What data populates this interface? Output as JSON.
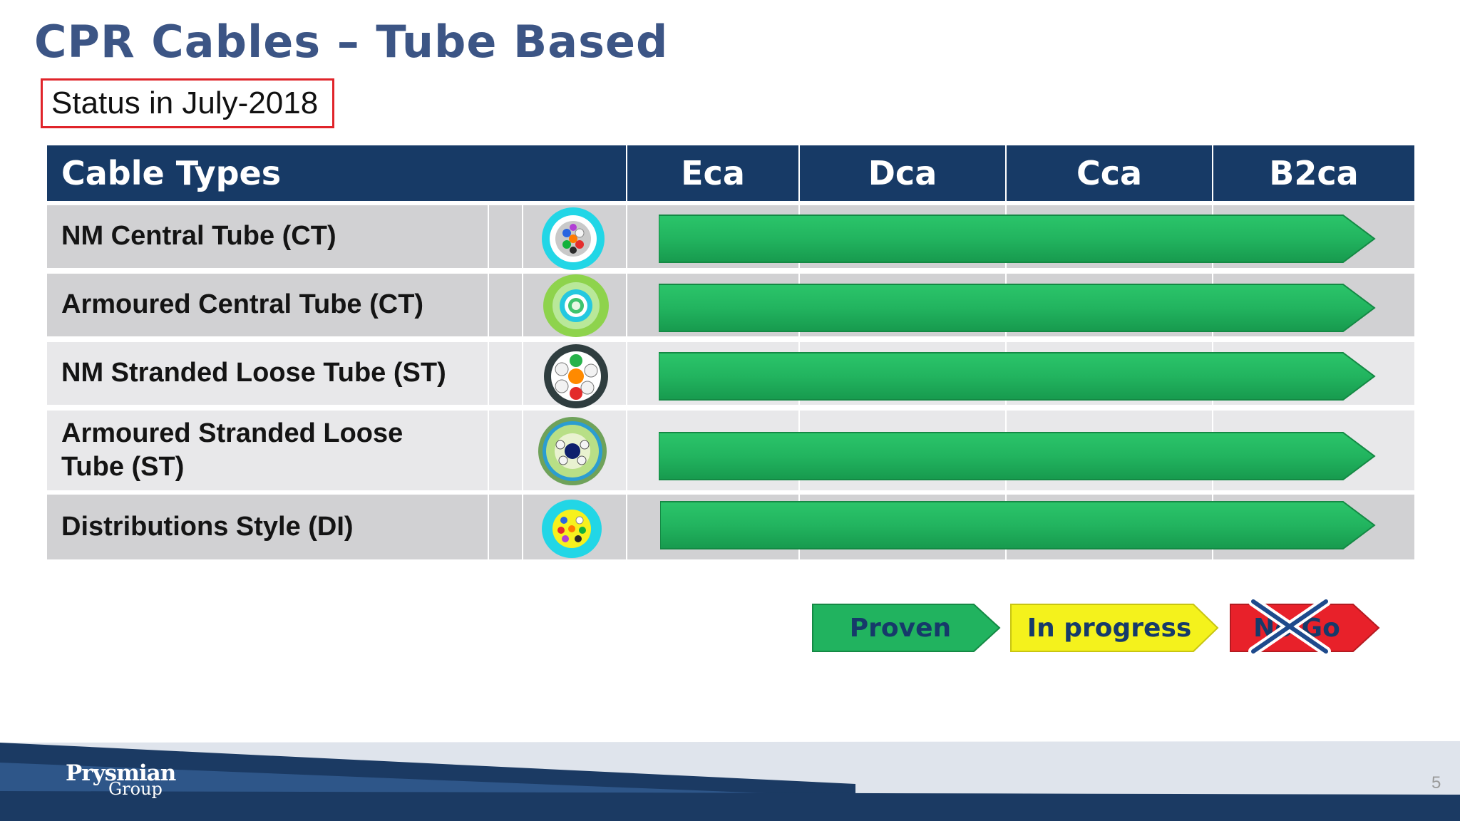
{
  "title": "CPR Cables – Tube Based",
  "status": "Status in July-2018",
  "table": {
    "header": {
      "cable_types": "Cable Types",
      "classes": [
        "Eca",
        "Dca",
        "Cca",
        "B2ca"
      ]
    },
    "rows": [
      {
        "label": "NM Central Tube (CT)",
        "icon": "nm-central-tube-cross-section-icon",
        "status": "Proven"
      },
      {
        "label": "Armoured Central Tube (CT)",
        "icon": "armoured-central-tube-cross-section-icon",
        "status": "Proven"
      },
      {
        "label": "NM Stranded Loose Tube (ST)",
        "icon": "nm-stranded-loose-tube-cross-section-icon",
        "status": "Proven"
      },
      {
        "label": "Armoured Stranded Loose Tube (ST)",
        "icon": "armoured-stranded-loose-tube-cross-section-icon",
        "status": "Proven"
      },
      {
        "label": "Distributions Style (DI)",
        "icon": "distribution-style-cross-section-icon",
        "status": "Proven"
      }
    ]
  },
  "legend": {
    "proven": "Proven",
    "in_progress": "In progress",
    "no_go": "No Go",
    "colors": {
      "proven": "#21b35f",
      "in_progress": "#f4f21c",
      "no_go": "#e8212a"
    }
  },
  "footer": {
    "logo_line1": "Prysmian",
    "logo_line2": "Group",
    "page_number": "5"
  },
  "colors": {
    "title": "#3c5585",
    "header_bg": "#173a66",
    "status_border": "#e0242a"
  }
}
